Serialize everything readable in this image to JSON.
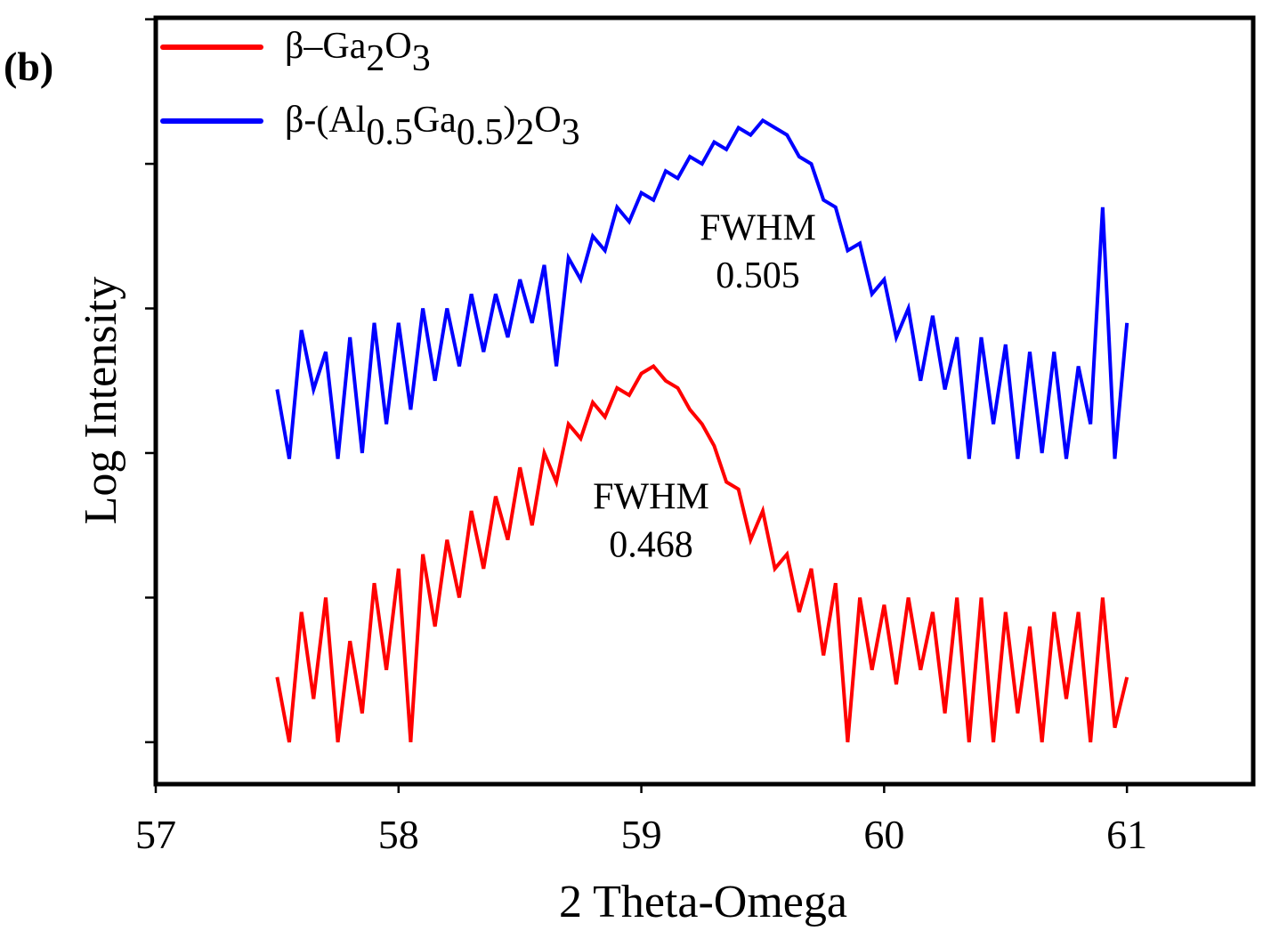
{
  "panel_label": "(b)",
  "chart_data": {
    "type": "line",
    "xlabel": "2 Theta-Omega",
    "ylabel": "Log Intensity",
    "xlim": [
      57,
      61.52
    ],
    "ylim": [
      -0.29,
      5.01
    ],
    "xticks": [
      57,
      58,
      59,
      60,
      61
    ],
    "xtick_labels": [
      "57",
      "58",
      "59",
      "60",
      "61"
    ],
    "yticks": [
      0,
      1,
      2,
      3,
      4,
      5
    ],
    "ytick_labels_shown": false,
    "grid": false,
    "legend_position": "top-left",
    "x_start": 57.5,
    "x_step": 0.05,
    "series": [
      {
        "name_parts": [
          [
            "β–Ga",
            ""
          ],
          [
            "2",
            "sub"
          ],
          [
            "O",
            ""
          ],
          [
            "3",
            "sub"
          ]
        ],
        "name": "β–Ga2O3",
        "color": "#ff0000",
        "values": [
          0.45,
          0.0,
          0.9,
          0.3,
          1.0,
          0.0,
          0.7,
          0.2,
          1.1,
          0.5,
          1.2,
          0.0,
          1.3,
          0.8,
          1.4,
          1.0,
          1.6,
          1.2,
          1.7,
          1.4,
          1.9,
          1.5,
          2.0,
          1.8,
          2.2,
          2.1,
          2.35,
          2.25,
          2.45,
          2.4,
          2.55,
          2.6,
          2.5,
          2.45,
          2.3,
          2.2,
          2.05,
          1.8,
          1.75,
          1.4,
          1.6,
          1.2,
          1.3,
          0.9,
          1.2,
          0.6,
          1.1,
          0.0,
          1.0,
          0.5,
          0.95,
          0.4,
          1.0,
          0.5,
          0.9,
          0.2,
          1.0,
          0.0,
          1.0,
          0.0,
          0.9,
          0.2,
          0.8,
          0.0,
          0.9,
          0.3,
          0.9,
          0.0,
          1.0,
          0.1,
          0.45
        ]
      },
      {
        "name_parts": [
          [
            "β-(Al",
            ""
          ],
          [
            "0.5",
            "sub"
          ],
          [
            "Ga",
            ""
          ],
          [
            "0.5",
            "sub"
          ],
          [
            ")",
            ""
          ],
          [
            "2",
            "sub"
          ],
          [
            "O",
            ""
          ],
          [
            "3",
            "sub"
          ]
        ],
        "name": "β-(Al0.5Ga0.5)2O3",
        "color": "#0000ff",
        "values": [
          2.44,
          1.96,
          2.85,
          2.44,
          2.7,
          1.96,
          2.8,
          2.0,
          2.9,
          2.2,
          2.9,
          2.3,
          3.0,
          2.5,
          3.0,
          2.6,
          3.1,
          2.7,
          3.1,
          2.8,
          3.2,
          2.9,
          3.3,
          2.6,
          3.35,
          3.2,
          3.5,
          3.4,
          3.7,
          3.6,
          3.8,
          3.75,
          3.95,
          3.9,
          4.05,
          4.0,
          4.15,
          4.1,
          4.25,
          4.2,
          4.3,
          4.25,
          4.2,
          4.05,
          4.0,
          3.75,
          3.7,
          3.4,
          3.45,
          3.1,
          3.2,
          2.8,
          3.0,
          2.5,
          2.95,
          2.44,
          2.8,
          1.96,
          2.8,
          2.2,
          2.75,
          1.96,
          2.7,
          2.0,
          2.7,
          1.96,
          2.6,
          2.2,
          3.7,
          1.96,
          2.9
        ]
      }
    ],
    "annotations": [
      {
        "text": [
          "FWHM",
          "0.505"
        ],
        "x": 59.48,
        "y": [
          3.56,
          3.23
        ]
      },
      {
        "text": [
          "FWHM",
          "0.468"
        ],
        "x": 59.04,
        "y": [
          1.7,
          1.37
        ]
      }
    ]
  }
}
